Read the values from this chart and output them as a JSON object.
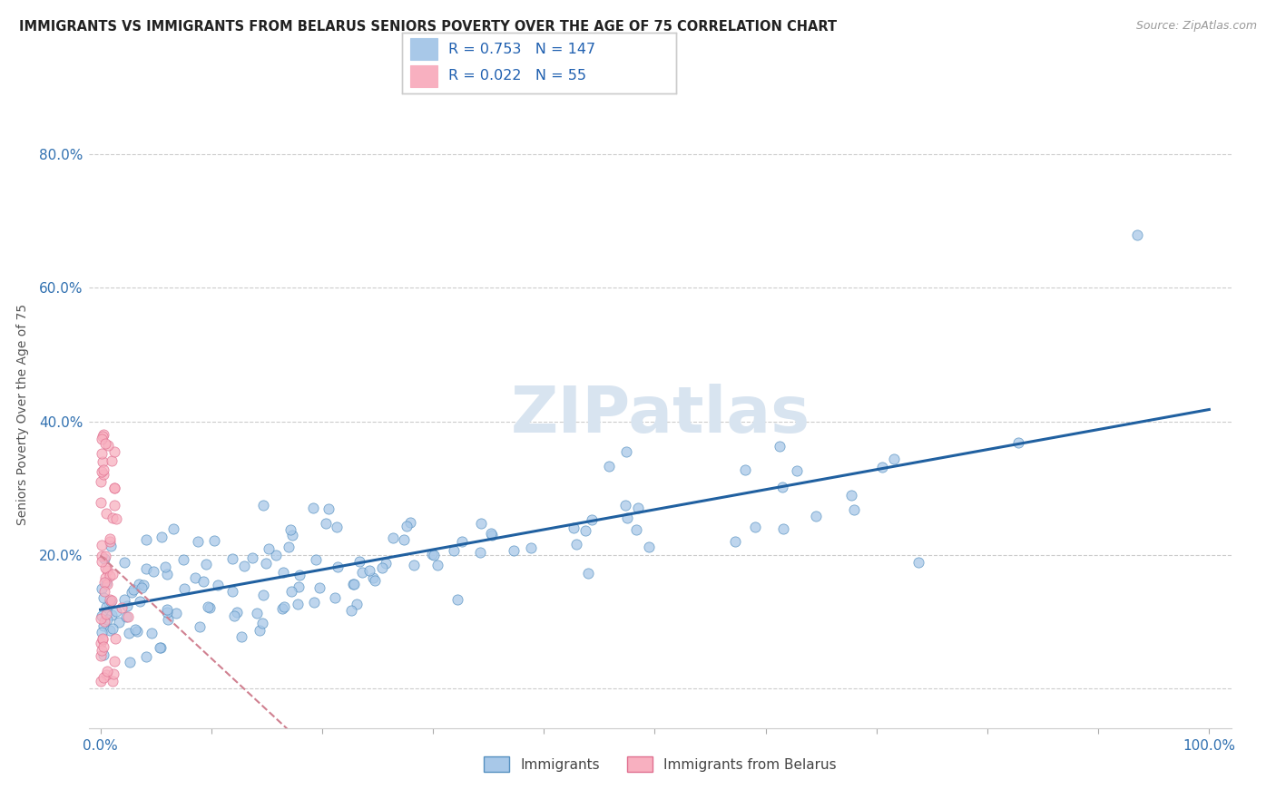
{
  "title": "IMMIGRANTS VS IMMIGRANTS FROM BELARUS SENIORS POVERTY OVER THE AGE OF 75 CORRELATION CHART",
  "source": "Source: ZipAtlas.com",
  "ylabel": "Seniors Poverty Over the Age of 75",
  "R_immigrants": 0.753,
  "N_immigrants": 147,
  "R_belarus": 0.022,
  "N_belarus": 55,
  "blue_scatter_color": "#a8c8e8",
  "blue_edge_color": "#5590c0",
  "pink_scatter_color": "#f8b0c0",
  "pink_edge_color": "#e07090",
  "line_blue_color": "#2060a0",
  "line_pink_color": "#d08090",
  "legend_text_color": "#2060b0",
  "watermark_color": "#d8e4f0",
  "background_color": "#ffffff",
  "grid_color": "#cccccc",
  "title_color": "#222222",
  "tick_color": "#3070b0",
  "ylabel_color": "#555555"
}
